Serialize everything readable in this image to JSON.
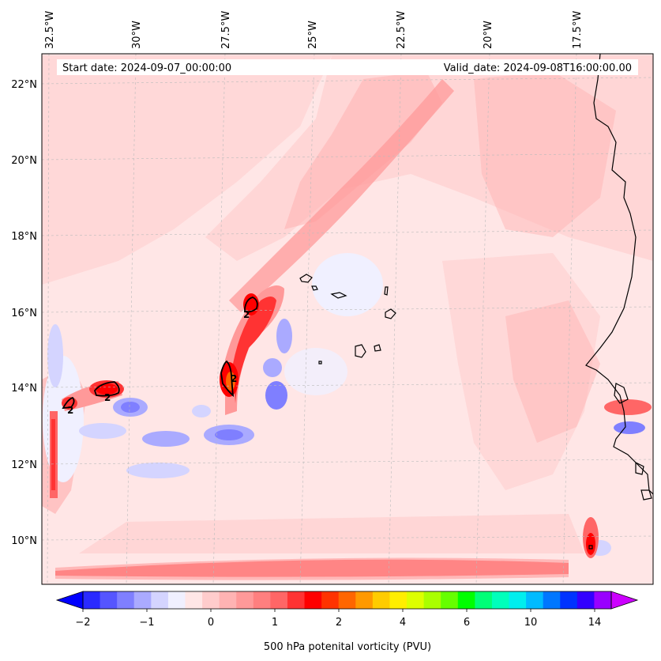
{
  "map": {
    "start_date": "Start date: 2024-09-07_00:00:00",
    "valid_date": "Valid_date: 2024-09-08T16:00:00.00",
    "lon_labels": [
      "32.5°W",
      "30°W",
      "27.5°W",
      "25°W",
      "22.5°W",
      "20°W",
      "17.5°W"
    ],
    "lat_labels": [
      "22°N",
      "20°N",
      "18°N",
      "16°N",
      "14°N",
      "12°N",
      "10°N"
    ],
    "contour_value_label": "2"
  },
  "colorbar": {
    "title": "500 hPa potenital vorticity (PVU)",
    "tick_labels": [
      "−2",
      "−1",
      "0",
      "1",
      "2",
      "4",
      "6",
      "10",
      "14"
    ],
    "colors": [
      "#0000ff",
      "#2a2aff",
      "#5555ff",
      "#7f7fff",
      "#aaaaff",
      "#d4d4ff",
      "#f0f0ff",
      "#ffe6e6",
      "#ffcccc",
      "#ffb3b3",
      "#ff9999",
      "#ff7f7f",
      "#ff6666",
      "#ff3333",
      "#ff0000",
      "#ff3300",
      "#ff6600",
      "#ff9900",
      "#ffcc00",
      "#ffee00",
      "#ddff00",
      "#aaff00",
      "#66ff00",
      "#00ff00",
      "#00ff77",
      "#00ffbb",
      "#00eeee",
      "#00bbff",
      "#0077ff",
      "#0033ff",
      "#3300ff",
      "#9900ff",
      "#cc00ff"
    ]
  }
}
